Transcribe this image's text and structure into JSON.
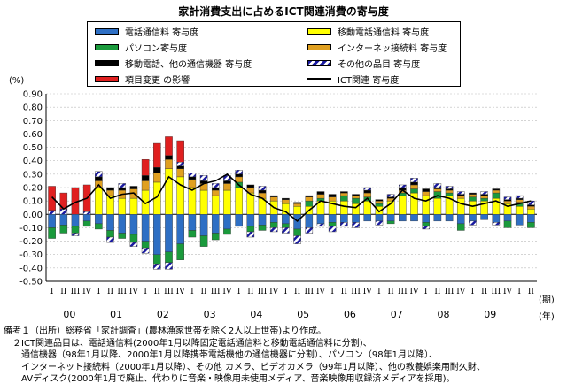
{
  "title": "家計消費支出に占めるICT関連消費の寄与度",
  "y_unit": "(%)",
  "x_unit_period": "(期)",
  "x_unit_year": "(年)",
  "legend": {
    "s1": "電話通信料 寄与度",
    "s2": "移動電話通信料 寄与度",
    "s3": "パソコン寄与度",
    "s4": "インターネッ接続料 寄与度",
    "s5": "移動電話、他の通信機器 寄与度",
    "s6": "その他の品目 寄与度",
    "s7": "項目変更 の影響",
    "s8": "ICT関連 寄与度"
  },
  "notes": [
    "備考１（出所）総務省「家計調査」(農林漁家世帯を除く2人以上世帯)より作成。",
    "　２ICT関連品目は、電話通信料(2000年1月以降固定電話通信料と移動電話通信料に分割)、",
    "　　通信機器（98年1月以降、2000年1月以降携帯電話機他の通信機器に分割）、パソコン（98年1月以降）、",
    "　　インターネット接続料（2000年1月以降）、その他 カメラ、ビデオカメラ（99年1月以降）、他の教養娯楽用耐久財、",
    "　　AVディスク(2000年1月で廃止、代わりに音楽・映像用未使用メディア、音楽映像用収録済メディアを採用)。"
  ],
  "chart_data": {
    "type": "bar",
    "stacked": true,
    "title": "家計消費支出に占めるICT関連消費の寄与度",
    "ylabel": "(%)",
    "ylim": [
      -0.5,
      0.9
    ],
    "yticks": [
      "0.90",
      "0.80",
      "0.70",
      "0.60",
      "0.50",
      "0.40",
      "0.30",
      "0.20",
      "0.10",
      "0.00",
      "-0.10",
      "-0.20",
      "-0.30",
      "-0.40",
      "-0.50"
    ],
    "grid": true,
    "legend_position": "top",
    "quarter_labels": [
      "I",
      "II",
      "III",
      "IV",
      "I",
      "II",
      "III",
      "IV",
      "I",
      "II",
      "III",
      "IV",
      "I",
      "II",
      "III",
      "IV",
      "I",
      "II",
      "III",
      "IV",
      "I",
      "II",
      "III",
      "IV",
      "I",
      "II",
      "III",
      "IV",
      "I",
      "II",
      "III",
      "IV",
      "I",
      "II",
      "III",
      "IV",
      "I",
      "II",
      "III",
      "IV",
      "I",
      "II"
    ],
    "year_labels": [
      {
        "label": "00",
        "at": 1.5
      },
      {
        "label": "01",
        "at": 5.5
      },
      {
        "label": "02",
        "at": 9.5
      },
      {
        "label": "03",
        "at": 13.5
      },
      {
        "label": "04",
        "at": 17.5
      },
      {
        "label": "05",
        "at": 21.5
      },
      {
        "label": "06",
        "at": 25.5
      },
      {
        "label": "07",
        "at": 29.5
      },
      {
        "label": "08",
        "at": 33.5
      },
      {
        "label": "09",
        "at": 37.5
      }
    ],
    "colors": {
      "s1": "#2e6fc4",
      "s2": "#ffff00",
      "s3": "#1a9a3c",
      "s4": "#e0a020",
      "s5": "#000000",
      "s6": "#1a1aa0",
      "s7": "#e02020",
      "s8": "#000000"
    },
    "series": [
      {
        "key": "s1",
        "name": "電話通信料 寄与度",
        "values": [
          -0.1,
          -0.08,
          -0.09,
          -0.05,
          -0.07,
          -0.12,
          -0.14,
          -0.15,
          -0.2,
          -0.3,
          -0.28,
          -0.22,
          -0.12,
          -0.16,
          -0.14,
          -0.11,
          -0.09,
          -0.09,
          -0.08,
          -0.06,
          -0.07,
          -0.11,
          -0.1,
          -0.07,
          -0.06,
          -0.06,
          -0.06,
          -0.05,
          -0.05,
          -0.05,
          -0.05,
          -0.05,
          -0.06,
          -0.05,
          -0.05,
          -0.07,
          -0.05,
          -0.04,
          -0.06,
          -0.05,
          -0.08,
          -0.06
        ]
      },
      {
        "key": "s2",
        "name": "移動電話通信料 寄与度",
        "values": [
          0.0,
          0.0,
          0.0,
          0.0,
          0.2,
          0.14,
          0.12,
          0.12,
          0.18,
          0.24,
          0.34,
          0.28,
          0.2,
          0.18,
          0.14,
          0.18,
          0.2,
          0.16,
          0.12,
          0.1,
          0.08,
          0.06,
          0.06,
          0.1,
          0.1,
          0.1,
          0.08,
          0.1,
          0.06,
          0.1,
          0.14,
          0.16,
          0.14,
          0.12,
          0.14,
          0.12,
          0.1,
          0.1,
          0.12,
          0.08,
          0.06,
          0.04
        ]
      },
      {
        "key": "s3",
        "name": "パソコン寄与度",
        "values": [
          -0.08,
          -0.06,
          -0.05,
          -0.04,
          -0.04,
          -0.05,
          -0.04,
          -0.06,
          -0.05,
          -0.07,
          -0.08,
          -0.12,
          -0.05,
          -0.08,
          -0.05,
          -0.04,
          0.04,
          -0.04,
          -0.04,
          -0.04,
          -0.03,
          -0.05,
          0.04,
          0.02,
          -0.03,
          0.04,
          0.04,
          0.03,
          0.02,
          -0.02,
          0.02,
          0.03,
          -0.03,
          0.05,
          0.02,
          -0.05,
          0.03,
          0.02,
          0.04,
          -0.05,
          0.03,
          -0.04
        ]
      },
      {
        "key": "s4",
        "name": "インターネッ接続料 寄与度",
        "values": [
          0.0,
          0.0,
          0.0,
          0.0,
          0.05,
          0.04,
          0.06,
          0.07,
          0.07,
          0.07,
          0.07,
          0.06,
          0.06,
          0.05,
          0.04,
          0.05,
          0.04,
          0.04,
          0.04,
          0.03,
          0.03,
          0.02,
          0.03,
          0.03,
          0.03,
          0.02,
          0.02,
          0.03,
          0.02,
          0.02,
          0.02,
          0.03,
          0.03,
          0.02,
          0.02,
          0.02,
          0.02,
          0.02,
          0.02,
          0.02,
          0.02,
          0.02
        ]
      },
      {
        "key": "s5",
        "name": "移動電話、他の通信機器 寄与度",
        "values": [
          0.0,
          0.0,
          0.0,
          0.0,
          0.03,
          0.02,
          0.02,
          0.02,
          0.04,
          0.04,
          0.03,
          0.02,
          0.02,
          0.02,
          0.02,
          0.02,
          0.02,
          0.02,
          0.02,
          0.01,
          0.01,
          0.01,
          0.01,
          0.02,
          0.02,
          0.01,
          0.01,
          0.02,
          0.01,
          0.01,
          0.02,
          0.02,
          0.02,
          0.01,
          0.01,
          0.01,
          0.01,
          0.01,
          0.01,
          0.01,
          0.01,
          0.01
        ]
      },
      {
        "key": "s6",
        "name": "その他の品目 寄与度",
        "values": [
          0.03,
          0.04,
          -0.02,
          0.02,
          0.04,
          -0.04,
          0.03,
          -0.03,
          -0.04,
          -0.04,
          -0.05,
          0.03,
          0.03,
          0.04,
          0.03,
          0.04,
          0.03,
          -0.04,
          0.03,
          -0.03,
          -0.04,
          -0.06,
          -0.04,
          -0.02,
          -0.04,
          -0.03,
          -0.04,
          0.02,
          -0.03,
          0.02,
          0.02,
          0.03,
          -0.02,
          0.03,
          0.02,
          0.02,
          -0.03,
          0.02,
          -0.02,
          0.02,
          0.02,
          0.03
        ]
      },
      {
        "key": "s7",
        "name": "項目変更 の影響",
        "values": [
          0.18,
          0.12,
          0.2,
          0.2,
          0.0,
          0.0,
          0.0,
          0.0,
          0.12,
          0.18,
          0.14,
          0.16,
          0.0,
          0.0,
          0.0,
          0.0,
          0.0,
          0.0,
          0.0,
          0.0,
          0.0,
          0.0,
          0.0,
          0.0,
          0.0,
          0.0,
          0.0,
          0.0,
          0.0,
          0.0,
          0.0,
          0.0,
          0.0,
          0.0,
          0.0,
          0.0,
          0.0,
          0.0,
          0.0,
          0.0,
          0.0,
          0.0
        ]
      },
      {
        "key": "s8",
        "name": "ICT関連 寄与度",
        "line": true,
        "values": [
          0.13,
          0.04,
          0.09,
          0.12,
          0.22,
          0.12,
          0.15,
          0.16,
          0.08,
          0.13,
          0.28,
          0.22,
          0.18,
          0.23,
          0.25,
          0.3,
          0.22,
          0.15,
          0.12,
          0.05,
          0.02,
          -0.05,
          0.03,
          0.1,
          0.08,
          0.06,
          0.05,
          0.12,
          0.02,
          0.08,
          0.18,
          0.12,
          0.1,
          0.14,
          0.12,
          0.08,
          0.06,
          0.08,
          0.1,
          0.06,
          0.08,
          0.1
        ]
      }
    ]
  }
}
